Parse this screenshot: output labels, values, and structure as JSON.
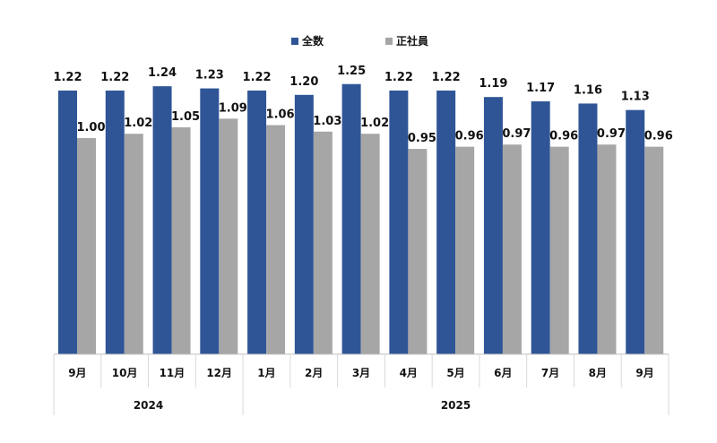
{
  "chart_data": {
    "type": "bar",
    "title": "",
    "xlabel": "",
    "ylabel": "",
    "ylim": [
      0,
      1.3
    ],
    "grid": false,
    "legend_position": "top-right",
    "categories": [
      "9月",
      "10月",
      "11月",
      "12月",
      "1月",
      "2月",
      "3月",
      "4月",
      "5月",
      "6月",
      "7月",
      "8月",
      "9月"
    ],
    "groups": [
      {
        "label": "2024",
        "count": 4
      },
      {
        "label": "2025",
        "count": 9
      }
    ],
    "series": [
      {
        "name": "全数",
        "color": "#2F5597",
        "values": [
          1.22,
          1.22,
          1.24,
          1.23,
          1.22,
          1.2,
          1.25,
          1.22,
          1.22,
          1.19,
          1.17,
          1.16,
          1.13
        ]
      },
      {
        "name": "正社員",
        "color": "#A6A6A6",
        "values": [
          1.0,
          1.02,
          1.05,
          1.09,
          1.06,
          1.03,
          1.02,
          0.95,
          0.96,
          0.97,
          0.96,
          0.97,
          0.96
        ]
      }
    ]
  }
}
